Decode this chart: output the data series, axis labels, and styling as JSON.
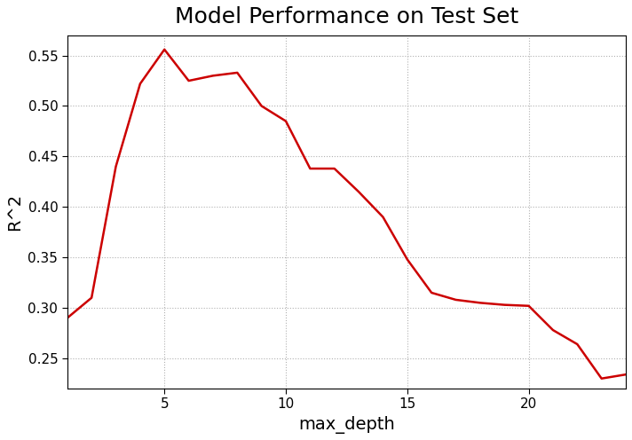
{
  "title": "Model Performance on Test Set",
  "xlabel": "max_depth",
  "ylabel": "R^2",
  "line_color": "#cc0000",
  "line_width": 1.8,
  "background_color": "#ffffff",
  "grid_color": "#b0b0b0",
  "x": [
    1,
    2,
    3,
    4,
    5,
    6,
    7,
    8,
    9,
    10,
    11,
    12,
    13,
    14,
    15,
    16,
    17,
    18,
    19,
    20,
    21,
    22,
    23,
    24
  ],
  "y": [
    0.29,
    0.31,
    0.44,
    0.522,
    0.556,
    0.525,
    0.53,
    0.533,
    0.5,
    0.485,
    0.438,
    0.438,
    0.415,
    0.39,
    0.348,
    0.315,
    0.308,
    0.305,
    0.303,
    0.302,
    0.278,
    0.264,
    0.23,
    0.234
  ],
  "xlim": [
    1,
    24
  ],
  "ylim": [
    0.22,
    0.57
  ],
  "xticks": [
    5,
    10,
    15,
    20
  ],
  "yticks": [
    0.25,
    0.3,
    0.35,
    0.4,
    0.45,
    0.5,
    0.55
  ],
  "title_fontsize": 18,
  "label_fontsize": 14,
  "tick_fontsize": 11
}
